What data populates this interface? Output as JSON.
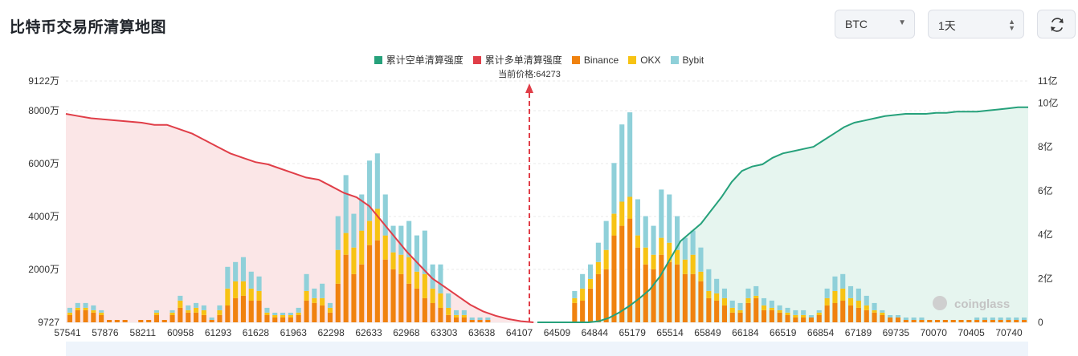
{
  "page": {
    "title": "比特币交易所清算地图",
    "coin_select": {
      "value": "BTC"
    },
    "range_select": {
      "value": "1天"
    }
  },
  "icons": {
    "refresh": "refresh-icon",
    "coin_caret": "chevron-down-icon",
    "range_caret": "up-down-icon"
  },
  "chart_data": {
    "type": "bar",
    "legend": [
      {
        "label": "累计空单清算强度",
        "color": "#26a17b"
      },
      {
        "label": "累计多单清算强度",
        "color": "#e03e48"
      },
      {
        "label": "Binance",
        "color": "#f0820f"
      },
      {
        "label": "OKX",
        "color": "#f7c314"
      },
      {
        "label": "Bybit",
        "color": "#8fd0d9"
      }
    ],
    "current_price_label": "当前价格:64273",
    "current_price": 64273,
    "x_tick_labels": [
      "57541",
      "57876",
      "58211",
      "60958",
      "61293",
      "61628",
      "61963",
      "62298",
      "62633",
      "62968",
      "63303",
      "63638",
      "64107",
      "64509",
      "64844",
      "65179",
      "65514",
      "65849",
      "66184",
      "66519",
      "66854",
      "67189",
      "69735",
      "70070",
      "70405",
      "70740"
    ],
    "left_axis": {
      "tick_labels": [
        "9727",
        "2000万",
        "4000万",
        "6000万",
        "8000万",
        "9122万"
      ],
      "ylim_wan": [
        0,
        9122
      ]
    },
    "right_axis": {
      "tick_labels": [
        "0",
        "2亿",
        "4亿",
        "6亿",
        "8亿",
        "10亿",
        "11亿"
      ],
      "ylim_yi": [
        0,
        11
      ]
    },
    "bars": {
      "binance": [
        3,
        5,
        5,
        4,
        3,
        1,
        1,
        1,
        0,
        1,
        1,
        3,
        1,
        3,
        6,
        4,
        4,
        3,
        1,
        3,
        7,
        10,
        11,
        9,
        9,
        3,
        2,
        2,
        2,
        3,
        9,
        8,
        7,
        4,
        16,
        28,
        20,
        24,
        32,
        34,
        26,
        22,
        20,
        16,
        14,
        10,
        8,
        6,
        3,
        2,
        2,
        1,
        1,
        1,
        0,
        0,
        0,
        0,
        0,
        0,
        0,
        0,
        0,
        0,
        8,
        9,
        14,
        20,
        22,
        36,
        40,
        43,
        31,
        24,
        22,
        28,
        25,
        24,
        20,
        20,
        17,
        10,
        9,
        7,
        4,
        4,
        8,
        10,
        5,
        5,
        4,
        3,
        2,
        2,
        2,
        3,
        7,
        8,
        9,
        7,
        6,
        5,
        4,
        3,
        2,
        2,
        1,
        1,
        1,
        1,
        1,
        1,
        1,
        1,
        1,
        1,
        1,
        1,
        1,
        1,
        1,
        1
      ],
      "okx": [
        1,
        1,
        1,
        1,
        1,
        0,
        0,
        0,
        0,
        0,
        0,
        1,
        0,
        1,
        3,
        1,
        2,
        2,
        0,
        2,
        7,
        7,
        6,
        5,
        4,
        1,
        1,
        1,
        1,
        1,
        4,
        2,
        3,
        2,
        14,
        9,
        11,
        14,
        10,
        13,
        10,
        7,
        8,
        11,
        7,
        10,
        6,
        6,
        3,
        1,
        1,
        0,
        0,
        0,
        0,
        0,
        0,
        0,
        0,
        0,
        0,
        0,
        0,
        0,
        2,
        5,
        4,
        5,
        8,
        9,
        10,
        9,
        5,
        7,
        6,
        7,
        8,
        6,
        6,
        8,
        4,
        3,
        3,
        3,
        2,
        1,
        2,
        1,
        2,
        1,
        1,
        1,
        1,
        1,
        0,
        1,
        3,
        5,
        5,
        3,
        3,
        2,
        1,
        1,
        0,
        0,
        0,
        0,
        0,
        0,
        0,
        0,
        0,
        0,
        0,
        0,
        0,
        0,
        0,
        0,
        0,
        0
      ],
      "bybit": [
        2,
        2,
        2,
        2,
        1,
        0,
        0,
        0,
        0,
        0,
        0,
        1,
        0,
        1,
        2,
        2,
        2,
        2,
        1,
        2,
        9,
        8,
        10,
        7,
        6,
        2,
        1,
        1,
        1,
        2,
        7,
        4,
        6,
        2,
        14,
        24,
        14,
        15,
        25,
        23,
        17,
        11,
        12,
        15,
        15,
        18,
        10,
        12,
        6,
        2,
        2,
        1,
        1,
        1,
        0,
        0,
        0,
        0,
        0,
        0,
        0,
        0,
        0,
        0,
        3,
        6,
        6,
        8,
        12,
        21,
        32,
        35,
        15,
        13,
        12,
        20,
        20,
        14,
        9,
        10,
        10,
        9,
        6,
        4,
        3,
        3,
        4,
        4,
        3,
        3,
        2,
        2,
        2,
        2,
        1,
        1,
        4,
        6,
        6,
        5,
        5,
        4,
        3,
        1,
        1,
        1,
        1,
        1,
        1,
        0,
        0,
        0,
        0,
        0,
        0,
        1,
        1,
        1,
        1,
        1,
        1,
        1
      ]
    },
    "short_curve_yi": [
      0,
      0,
      0,
      0,
      0,
      0,
      0.05,
      0.2,
      0.45,
      0.75,
      1.1,
      1.5,
      2.1,
      2.9,
      3.7,
      4.1,
      4.5,
      5.1,
      5.7,
      6.4,
      6.9,
      7.1,
      7.2,
      7.5,
      7.7,
      7.8,
      7.9,
      8.0,
      8.3,
      8.6,
      8.9,
      9.1,
      9.2,
      9.3,
      9.4,
      9.45,
      9.5,
      9.5,
      9.5,
      9.55,
      9.55,
      9.6,
      9.6,
      9.6,
      9.65,
      9.7,
      9.75,
      9.8,
      9.8
    ],
    "long_curve_yi": [
      9.5,
      9.4,
      9.3,
      9.25,
      9.2,
      9.15,
      9.1,
      9.0,
      9.0,
      8.8,
      8.6,
      8.3,
      8.0,
      7.7,
      7.5,
      7.3,
      7.2,
      7.0,
      6.8,
      6.6,
      6.5,
      6.2,
      5.9,
      5.7,
      5.3,
      4.6,
      3.9,
      3.2,
      2.6,
      2.0,
      1.6,
      1.2,
      0.8,
      0.5,
      0.3,
      0.15,
      0.05,
      0
    ]
  }
}
